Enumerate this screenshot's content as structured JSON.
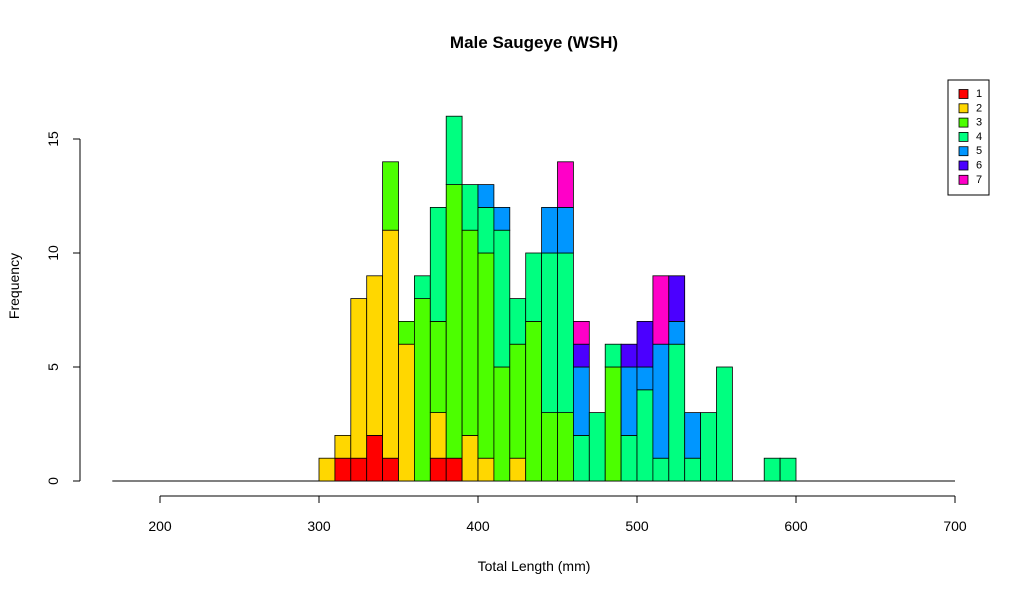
{
  "chart_data": {
    "type": "bar",
    "stacked": true,
    "title": "Male Saugeye (WSH)",
    "xlabel": "Total Length (mm)",
    "ylabel": "Frequency",
    "xlim": [
      170,
      700
    ],
    "ylim": [
      0,
      17
    ],
    "x_ticks": [
      200,
      300,
      400,
      500,
      600,
      700
    ],
    "y_ticks": [
      0,
      5,
      10,
      15
    ],
    "bin_width": 10,
    "legend_position": "top-right",
    "grid": false,
    "bins": [
      300,
      310,
      320,
      330,
      340,
      350,
      360,
      370,
      380,
      390,
      400,
      410,
      420,
      430,
      440,
      450,
      460,
      470,
      480,
      490,
      500,
      510,
      520,
      530,
      540,
      550,
      560,
      570,
      580,
      590
    ],
    "series": [
      {
        "name": "1",
        "color": "#FF0000",
        "values": [
          0,
          1,
          1,
          2,
          1,
          0,
          0,
          1,
          1,
          0,
          0,
          0,
          0,
          0,
          0,
          0,
          0,
          0,
          0,
          0,
          0,
          0,
          0,
          0,
          0,
          0,
          0,
          0,
          0,
          0
        ]
      },
      {
        "name": "2",
        "color": "#FFD700",
        "values": [
          1,
          1,
          7,
          7,
          10,
          6,
          0,
          2,
          0,
          2,
          1,
          0,
          1,
          0,
          0,
          0,
          0,
          0,
          0,
          0,
          0,
          0,
          0,
          0,
          0,
          0,
          0,
          0,
          0,
          0
        ]
      },
      {
        "name": "3",
        "color": "#4CFF00",
        "values": [
          0,
          0,
          0,
          0,
          3,
          1,
          8,
          4,
          12,
          9,
          9,
          5,
          5,
          7,
          3,
          3,
          0,
          0,
          5,
          0,
          0,
          0,
          0,
          0,
          0,
          0,
          0,
          0,
          0,
          0
        ]
      },
      {
        "name": "4",
        "color": "#00FF80",
        "values": [
          0,
          0,
          0,
          0,
          0,
          0,
          1,
          5,
          3,
          2,
          2,
          6,
          2,
          3,
          7,
          7,
          2,
          3,
          1,
          2,
          4,
          1,
          6,
          1,
          3,
          5,
          0,
          0,
          1,
          1
        ]
      },
      {
        "name": "5",
        "color": "#0096FF",
        "values": [
          0,
          0,
          0,
          0,
          0,
          0,
          0,
          0,
          0,
          0,
          1,
          1,
          0,
          0,
          2,
          2,
          3,
          0,
          0,
          3,
          1,
          5,
          1,
          2,
          0,
          0,
          0,
          0,
          0,
          0
        ]
      },
      {
        "name": "6",
        "color": "#4B00FF",
        "values": [
          0,
          0,
          0,
          0,
          0,
          0,
          0,
          0,
          0,
          0,
          0,
          0,
          0,
          0,
          0,
          0,
          1,
          0,
          0,
          1,
          2,
          0,
          2,
          0,
          0,
          0,
          0,
          0,
          0,
          0
        ]
      },
      {
        "name": "7",
        "color": "#FF00C8",
        "values": [
          0,
          0,
          0,
          0,
          0,
          0,
          0,
          0,
          0,
          0,
          0,
          0,
          0,
          0,
          0,
          2,
          1,
          0,
          0,
          0,
          0,
          3,
          0,
          0,
          0,
          0,
          0,
          0,
          0,
          0
        ]
      }
    ]
  }
}
